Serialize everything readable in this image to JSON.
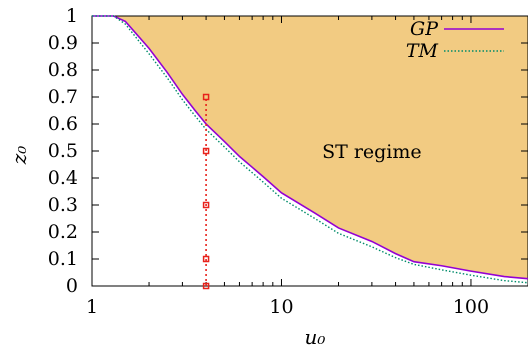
{
  "chart_data": {
    "type": "area",
    "xlabel": "u₀",
    "ylabel": "z₀",
    "xscale": "log",
    "xlim": [
      1,
      200
    ],
    "ylim": [
      0,
      1
    ],
    "x_ticks": [
      {
        "value": 1,
        "label": "1"
      },
      {
        "value": 10,
        "label": "10"
      },
      {
        "value": 100,
        "label": "100"
      }
    ],
    "y_ticks": [
      {
        "value": 0,
        "label": "0"
      },
      {
        "value": 0.1,
        "label": "0.1"
      },
      {
        "value": 0.2,
        "label": "0.2"
      },
      {
        "value": 0.3,
        "label": "0.3"
      },
      {
        "value": 0.4,
        "label": "0.4"
      },
      {
        "value": 0.5,
        "label": "0.5"
      },
      {
        "value": 0.6,
        "label": "0.6"
      },
      {
        "value": 0.7,
        "label": "0.7"
      },
      {
        "value": 0.8,
        "label": "0.8"
      },
      {
        "value": 0.9,
        "label": "0.9"
      },
      {
        "value": 1,
        "label": "1"
      }
    ],
    "legend_position": "top-right",
    "grid": false,
    "region_fill_color": "#f2cb82",
    "series": [
      {
        "name": "GP",
        "color": "#9400d3",
        "style": "solid",
        "fill_above": true,
        "x": [
          1,
          1.3,
          1.5,
          2,
          2.5,
          3,
          3.5,
          4,
          5,
          6,
          7,
          8,
          10,
          15,
          20,
          30,
          40,
          50,
          70,
          100,
          150,
          200
        ],
        "y": [
          1,
          1,
          0.98,
          0.88,
          0.79,
          0.71,
          0.65,
          0.6,
          0.535,
          0.48,
          0.44,
          0.405,
          0.345,
          0.27,
          0.215,
          0.165,
          0.12,
          0.09,
          0.075,
          0.055,
          0.035,
          0.027
        ]
      },
      {
        "name": "TM",
        "color": "#008b6a",
        "style": "dotted",
        "x": [
          1,
          1.3,
          1.5,
          2,
          2.5,
          3,
          3.5,
          4,
          5,
          6,
          7,
          8,
          10,
          15,
          20,
          30,
          40,
          50,
          70,
          100,
          150,
          200
        ],
        "y": [
          1,
          1,
          0.97,
          0.86,
          0.77,
          0.69,
          0.63,
          0.58,
          0.515,
          0.46,
          0.42,
          0.385,
          0.325,
          0.25,
          0.195,
          0.145,
          0.105,
          0.08,
          0.06,
          0.04,
          0.02,
          0.012
        ]
      }
    ],
    "markers": {
      "color": "#e8221b",
      "style": "dotted-line-with-squares",
      "x": 4,
      "y_values": [
        0,
        0.1,
        0.3,
        0.5,
        0.7
      ]
    },
    "annotations": [
      {
        "text": "ST regime",
        "x": 30,
        "y": 0.5
      }
    ]
  }
}
